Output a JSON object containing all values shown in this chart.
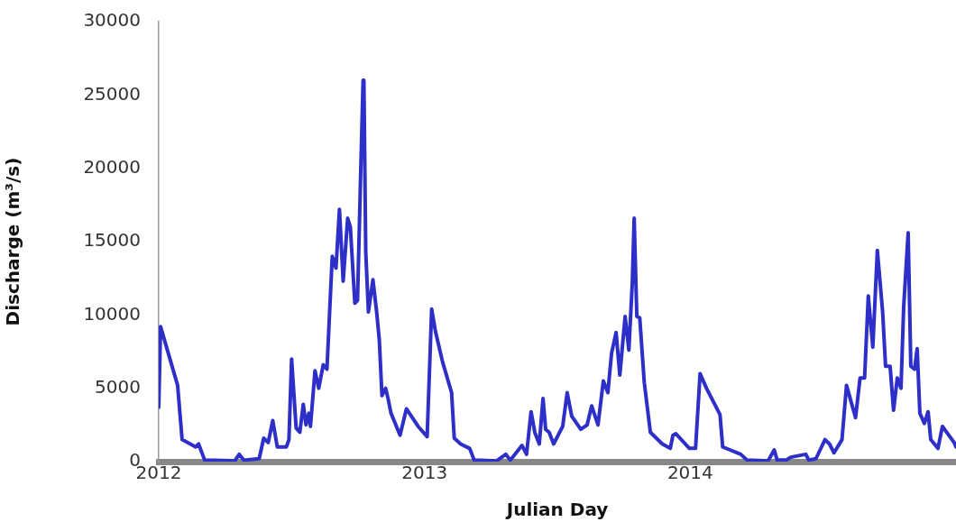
{
  "chart_data": {
    "type": "line",
    "xlabel": "Julian Day",
    "ylabel": "Discharge (m³/s)",
    "xlim": [
      2012,
      2015
    ],
    "xticks": [
      2012,
      2013,
      2014
    ],
    "ylim": [
      0,
      30000
    ],
    "yticks": [
      0,
      5000,
      10000,
      15000,
      20000,
      25000,
      30000
    ],
    "grid": false,
    "legend": false,
    "marker": "none",
    "line_style": "solid",
    "x": [
      2012.0,
      2012.007,
      2012.071,
      2012.088,
      2012.139,
      2012.15,
      2012.173,
      2012.286,
      2012.303,
      2012.32,
      2012.378,
      2012.395,
      2012.412,
      2012.429,
      2012.446,
      2012.48,
      2012.49,
      2012.5,
      2012.517,
      2012.531,
      2012.544,
      2012.554,
      2012.565,
      2012.571,
      2012.588,
      2012.602,
      2012.619,
      2012.633,
      2012.643,
      2012.653,
      2012.667,
      2012.68,
      2012.694,
      2012.711,
      2012.721,
      2012.738,
      2012.748,
      2012.759,
      2012.769,
      2012.772,
      2012.779,
      2012.789,
      2012.806,
      2012.82,
      2012.83,
      2012.84,
      2012.854,
      2012.864,
      2012.874,
      2012.908,
      2012.932,
      2012.976,
      2013.01,
      2013.027,
      2013.041,
      2013.068,
      2013.102,
      2013.112,
      2013.136,
      2013.17,
      2013.187,
      2013.272,
      2013.306,
      2013.323,
      2013.367,
      2013.384,
      2013.401,
      2013.415,
      2013.432,
      2013.446,
      2013.456,
      2013.469,
      2013.486,
      2013.52,
      2013.537,
      2013.554,
      2013.588,
      2013.612,
      2013.629,
      2013.653,
      2013.673,
      2013.69,
      2013.704,
      2013.721,
      2013.735,
      2013.755,
      2013.769,
      2013.782,
      2013.789,
      2013.799,
      2013.81,
      2013.827,
      2013.85,
      2013.895,
      2013.925,
      2013.935,
      2013.946,
      2013.997,
      2014.02,
      2014.037,
      2014.061,
      2014.112,
      2014.122,
      2014.19,
      2014.214,
      2014.293,
      2014.316,
      2014.327,
      2014.361,
      2014.378,
      2014.435,
      2014.446,
      2014.473,
      2014.507,
      2014.524,
      2014.541,
      2014.571,
      2014.588,
      2014.622,
      2014.639,
      2014.656,
      2014.67,
      2014.687,
      2014.704,
      2014.724,
      2014.735,
      2014.752,
      2014.765,
      2014.779,
      2014.793,
      2014.803,
      2014.82,
      2014.83,
      2014.844,
      2014.854,
      2014.864,
      2014.881,
      2014.895,
      2014.905,
      2014.932,
      2014.949,
      2014.993,
      2015.0
    ],
    "series": [
      {
        "color": "#2e2ec8",
        "values": [
          3700,
          9200,
          5200,
          1500,
          1000,
          1200,
          100,
          50,
          500,
          100,
          200,
          1600,
          1300,
          2800,
          1000,
          1000,
          1500,
          7000,
          2300,
          2000,
          3900,
          2500,
          3300,
          2400,
          6200,
          5000,
          6600,
          6300,
          10200,
          14000,
          13200,
          17200,
          12300,
          16600,
          16000,
          10800,
          11000,
          19000,
          26000,
          26000,
          14300,
          10200,
          12400,
          10200,
          8300,
          4500,
          5000,
          4200,
          3300,
          1800,
          3600,
          2400,
          1700,
          10400,
          8900,
          6800,
          4700,
          1600,
          1200,
          900,
          100,
          50,
          500,
          100,
          1100,
          500,
          3400,
          2000,
          1200,
          4300,
          2200,
          2000,
          1200,
          2400,
          4700,
          3100,
          2200,
          2500,
          3800,
          2500,
          5500,
          4700,
          7400,
          8800,
          5900,
          9900,
          7600,
          12200,
          16600,
          9900,
          9800,
          5400,
          2000,
          1200,
          900,
          1800,
          1900,
          900,
          900,
          6000,
          5000,
          3200,
          1000,
          500,
          100,
          50,
          800,
          100,
          100,
          300,
          500,
          100,
          200,
          1500,
          1200,
          600,
          1500,
          5200,
          3000,
          5700,
          5700,
          11300,
          7800,
          14400,
          10200,
          6500,
          6500,
          3500,
          5700,
          5000,
          10500,
          15600,
          6500,
          6300,
          7700,
          3300,
          2600,
          3400,
          1500,
          900,
          2400,
          1300,
          1000
        ]
      }
    ]
  }
}
